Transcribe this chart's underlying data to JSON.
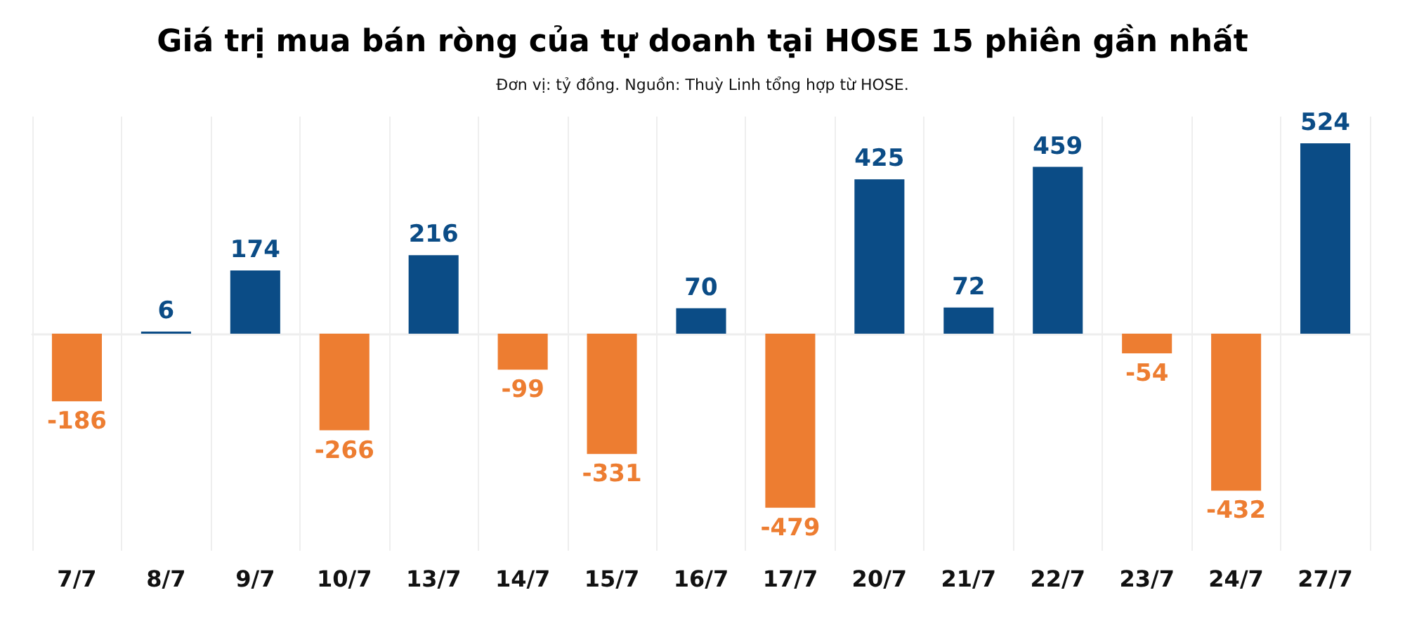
{
  "chart_data": {
    "type": "bar",
    "title": "Giá trị mua bán ròng của tự doanh tại HOSE 15 phiên gần nhất",
    "subtitle": "Đơn vị: tỷ đồng. Nguồn: Thuỳ Linh tổng hợp từ HOSE.",
    "categories": [
      "7/7",
      "8/7",
      "9/7",
      "10/7",
      "13/7",
      "14/7",
      "15/7",
      "16/7",
      "17/7",
      "20/7",
      "21/7",
      "22/7",
      "23/7",
      "24/7",
      "27/7"
    ],
    "values": [
      -186,
      6,
      174,
      -266,
      216,
      -99,
      -331,
      70,
      -479,
      425,
      72,
      459,
      -54,
      -432,
      524
    ],
    "colors": [
      "#ed7d31",
      "#0b4c86",
      "#0b4c86",
      "#ed7d31",
      "#0b4c86",
      "#ed7d31",
      "#ed7d31",
      "#0b4c86",
      "#ed7d31",
      "#0b4c86",
      "#0b4c86",
      "#0b4c86",
      "#ed7d31",
      "#ed7d31",
      "#0b4c86"
    ],
    "data_labels": true,
    "tick_labels": "x",
    "grid": "x"
  }
}
